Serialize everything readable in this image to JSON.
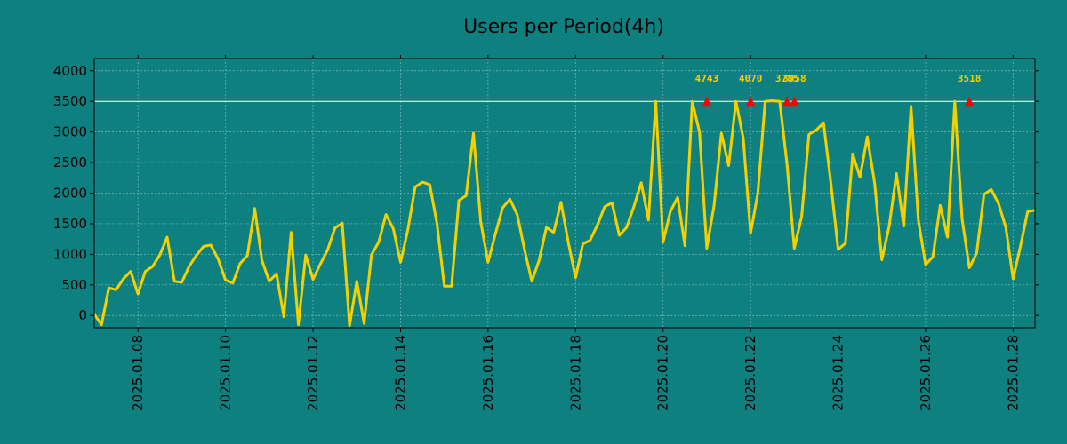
{
  "chart_data": {
    "type": "line",
    "title": "Users per Period(4h)",
    "xlabel": "",
    "ylabel": "",
    "ylim": [
      -200,
      4200
    ],
    "x_range": [
      "2025-01-07T00:00",
      "2025-01-28T12:00"
    ],
    "yticks": [
      0,
      500,
      1000,
      1500,
      2000,
      2500,
      3000,
      3500,
      4000
    ],
    "xticks": [
      "2025.01.08",
      "2025.01.10",
      "2025.01.12",
      "2025.01.14",
      "2025.01.16",
      "2025.01.18",
      "2025.01.20",
      "2025.01.22",
      "2025.01.24",
      "2025.01.26",
      "2025.01.28"
    ],
    "threshold": 3500,
    "grid": true,
    "colors": {
      "background": "#0f8080",
      "line": "#f5d000",
      "marker": "#ff0000",
      "threshold": "#ffffff",
      "text": "#000000"
    },
    "series": [
      {
        "x": [
          "2025-01-07T00:00",
          "2025-01-07T04:00",
          "2025-01-07T08:00",
          "2025-01-07T12:00",
          "2025-01-07T16:00",
          "2025-01-07T20:00",
          "2025-01-08T00:00",
          "2025-01-08T04:00",
          "2025-01-08T08:00",
          "2025-01-08T12:00",
          "2025-01-08T16:00",
          "2025-01-08T20:00",
          "2025-01-09T00:00",
          "2025-01-09T04:00",
          "2025-01-09T08:00",
          "2025-01-09T12:00",
          "2025-01-09T16:00",
          "2025-01-09T20:00",
          "2025-01-10T00:00",
          "2025-01-10T04:00",
          "2025-01-10T08:00",
          "2025-01-10T12:00",
          "2025-01-10T16:00",
          "2025-01-10T20:00",
          "2025-01-11T00:00",
          "2025-01-11T04:00",
          "2025-01-11T08:00",
          "2025-01-11T12:00",
          "2025-01-11T16:00",
          "2025-01-11T20:00",
          "2025-01-12T00:00",
          "2025-01-12T04:00",
          "2025-01-12T08:00",
          "2025-01-12T12:00",
          "2025-01-12T16:00",
          "2025-01-12T20:00",
          "2025-01-13T00:00",
          "2025-01-13T04:00",
          "2025-01-13T08:00",
          "2025-01-13T12:00",
          "2025-01-13T16:00",
          "2025-01-13T20:00",
          "2025-01-14T00:00",
          "2025-01-14T04:00",
          "2025-01-14T08:00",
          "2025-01-14T12:00",
          "2025-01-14T16:00",
          "2025-01-14T20:00",
          "2025-01-15T00:00",
          "2025-01-15T04:00",
          "2025-01-15T08:00",
          "2025-01-15T12:00",
          "2025-01-15T16:00",
          "2025-01-15T20:00",
          "2025-01-16T00:00",
          "2025-01-16T04:00",
          "2025-01-16T08:00",
          "2025-01-16T12:00",
          "2025-01-16T16:00",
          "2025-01-16T20:00",
          "2025-01-17T00:00",
          "2025-01-17T04:00",
          "2025-01-17T08:00",
          "2025-01-17T12:00",
          "2025-01-17T16:00",
          "2025-01-17T20:00",
          "2025-01-18T00:00",
          "2025-01-18T04:00",
          "2025-01-18T08:00",
          "2025-01-18T12:00",
          "2025-01-18T16:00",
          "2025-01-18T20:00",
          "2025-01-19T00:00",
          "2025-01-19T04:00",
          "2025-01-19T08:00",
          "2025-01-19T12:00",
          "2025-01-19T16:00",
          "2025-01-19T20:00",
          "2025-01-20T00:00",
          "2025-01-20T04:00",
          "2025-01-20T08:00",
          "2025-01-20T12:00",
          "2025-01-20T16:00",
          "2025-01-20T20:00",
          "2025-01-21T00:00",
          "2025-01-21T04:00",
          "2025-01-21T08:00",
          "2025-01-21T12:00",
          "2025-01-21T16:00",
          "2025-01-21T20:00",
          "2025-01-22T00:00",
          "2025-01-22T04:00",
          "2025-01-22T08:00",
          "2025-01-22T12:00",
          "2025-01-22T16:00",
          "2025-01-22T20:00",
          "2025-01-23T00:00",
          "2025-01-23T04:00",
          "2025-01-23T08:00",
          "2025-01-23T12:00",
          "2025-01-23T16:00",
          "2025-01-23T20:00",
          "2025-01-24T00:00",
          "2025-01-24T04:00",
          "2025-01-24T08:00",
          "2025-01-24T12:00",
          "2025-01-24T16:00",
          "2025-01-24T20:00",
          "2025-01-25T00:00",
          "2025-01-25T04:00",
          "2025-01-25T08:00",
          "2025-01-25T12:00",
          "2025-01-25T16:00",
          "2025-01-25T20:00",
          "2025-01-26T00:00",
          "2025-01-26T04:00",
          "2025-01-26T08:00",
          "2025-01-26T12:00",
          "2025-01-26T16:00",
          "2025-01-26T20:00",
          "2025-01-27T00:00",
          "2025-01-27T04:00",
          "2025-01-27T08:00",
          "2025-01-27T12:00",
          "2025-01-27T16:00",
          "2025-01-27T20:00",
          "2025-01-28T00:00",
          "2025-01-28T04:00",
          "2025-01-28T08:00",
          "2025-01-28T12:00"
        ],
        "values": [
          20,
          -150,
          450,
          420,
          600,
          720,
          350,
          720,
          800,
          990,
          1280,
          560,
          540,
          800,
          980,
          1130,
          1150,
          920,
          580,
          530,
          850,
          980,
          1750,
          900,
          560,
          680,
          -20,
          1360,
          -150,
          990,
          590,
          840,
          1070,
          1430,
          1510,
          -170,
          560,
          -130,
          990,
          1200,
          1650,
          1420,
          870,
          1400,
          2100,
          2180,
          2140,
          1500,
          480,
          480,
          1880,
          1960,
          2980,
          1530,
          870,
          1330,
          1760,
          1900,
          1650,
          1080,
          560,
          900,
          1440,
          1360,
          1850,
          1200,
          620,
          1170,
          1230,
          1480,
          1780,
          1840,
          1310,
          1440,
          1780,
          2170,
          1560,
          3500,
          1200,
          1700,
          1930,
          1140,
          3500,
          3000,
          1100,
          1800,
          2980,
          2450,
          3500,
          2900,
          1340,
          2000,
          3500,
          3510,
          3500,
          2480,
          1100,
          1620,
          2960,
          3030,
          3150,
          2170,
          1080,
          1180,
          2640,
          2260,
          2920,
          2170,
          910,
          1460,
          2320,
          1460,
          3420,
          1560,
          830,
          960,
          1800,
          1280,
          3500,
          1580,
          780,
          1020,
          1980,
          2060,
          1830,
          1440,
          600,
          1130,
          1700,
          1720
        ]
      }
    ],
    "peaks": [
      {
        "x": "2025-01-21T00:00",
        "value": 3500,
        "label": "4743"
      },
      {
        "x": "2025-01-22T00:00",
        "value": 3500,
        "label": "4070"
      },
      {
        "x": "2025-01-22T20:00",
        "value": 3500,
        "label": "3785"
      },
      {
        "x": "2025-01-23T00:00",
        "value": 3500,
        "label": "3958"
      },
      {
        "x": "2025-01-27T00:00",
        "value": 3500,
        "label": "3518"
      }
    ]
  }
}
